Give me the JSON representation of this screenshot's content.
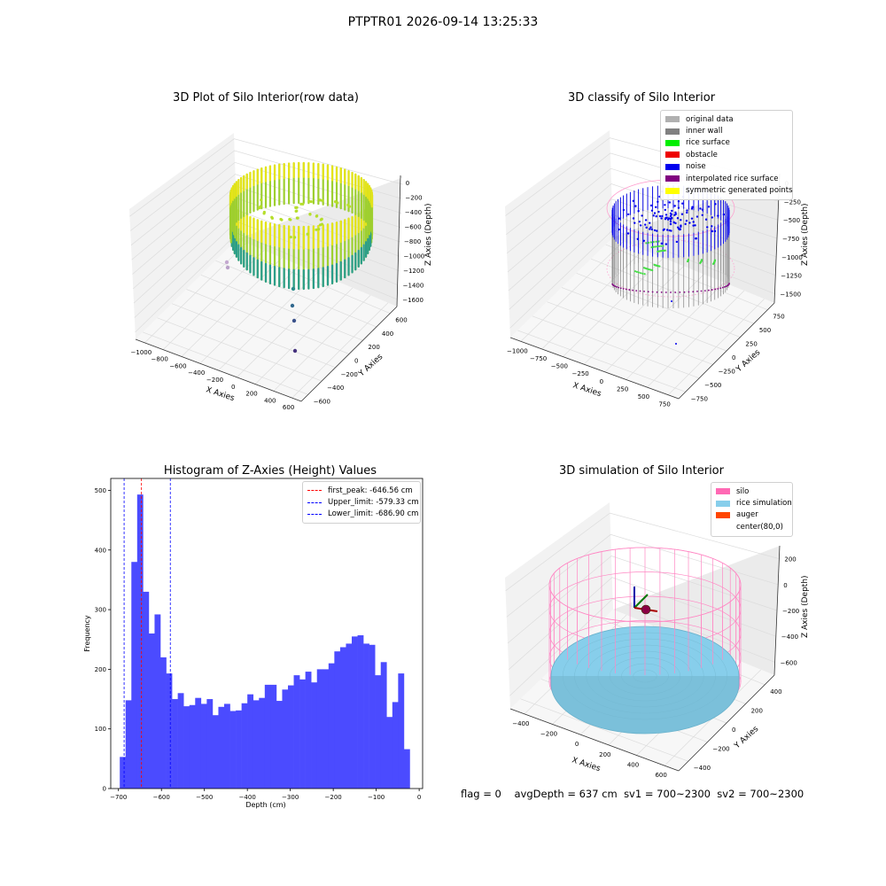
{
  "figure": {
    "suptitle": "PTPTR01 2026-09-14 13:25:33",
    "footer": {
      "flag": "flag = 0",
      "avg_depth": "avgDepth = 637 cm",
      "sv1": "sv1 = 700~2300",
      "sv2": "sv2 = 700~2300"
    }
  },
  "chart_data": [
    {
      "type": "scatter",
      "projection": "3d",
      "title": "3D Plot of Silo Interior(row data)",
      "xlabel": "X Axies",
      "ylabel": "Y Axies",
      "zlabel": "Z Axies (Depth)",
      "xticks": [
        "−1000",
        "−800",
        "−600",
        "−400",
        "−200",
        "0",
        "200",
        "400",
        "600"
      ],
      "yticks": [
        "−600",
        "−400",
        "−200",
        "0",
        "200",
        "400",
        "600"
      ],
      "zticks": [
        "0",
        "−200",
        "−400",
        "−600",
        "−800",
        "−1000",
        "−1200",
        "−1400",
        "−1600"
      ],
      "colormap": "viridis",
      "grid": true
    },
    {
      "type": "scatter",
      "projection": "3d",
      "title": "3D classify of Silo Interior",
      "xlabel": "X Axies",
      "ylabel": "Y Axies",
      "zlabel": "Z Axies (Depth)",
      "xticks": [
        "−1000",
        "−750",
        "−500",
        "−250",
        "0",
        "250",
        "500",
        "750"
      ],
      "yticks": [
        "−750",
        "−500",
        "−250",
        "0",
        "250",
        "500",
        "750"
      ],
      "zticks": [
        "0",
        "−250",
        "−500",
        "−750",
        "−1000",
        "−1250",
        "−1500"
      ],
      "legend": [
        {
          "label": "original data",
          "color": "#b0b0b0"
        },
        {
          "label": "inner wall",
          "color": "#808080"
        },
        {
          "label": "rice surface",
          "color": "#00ee00"
        },
        {
          "label": "obstacle",
          "color": "#ee0000"
        },
        {
          "label": "noise",
          "color": "#0000ee"
        },
        {
          "label": "interpolated rice surface",
          "color": "#800080"
        },
        {
          "label": "symmetric generated points",
          "color": "#ffff00"
        }
      ],
      "grid": true
    },
    {
      "type": "bar",
      "title": "Histogram of Z-Axies (Height) Values",
      "xlabel": "Depth (cm)",
      "ylabel": "Frequency",
      "xlim": [
        -718,
        8
      ],
      "ylim": [
        0,
        520
      ],
      "xticks": [
        "−700",
        "−600",
        "−500",
        "−400",
        "−300",
        "−200",
        "−100",
        "0"
      ],
      "yticks": [
        "0",
        "100",
        "200",
        "300",
        "400",
        "500"
      ],
      "bin_start": -697,
      "bin_width": 13.5,
      "values": [
        53,
        148,
        380,
        493,
        330,
        260,
        292,
        220,
        193,
        150,
        160,
        138,
        140,
        152,
        142,
        150,
        123,
        137,
        142,
        130,
        131,
        143,
        158,
        148,
        152,
        174,
        174,
        147,
        166,
        173,
        190,
        183,
        196,
        178,
        200,
        200,
        210,
        230,
        237,
        243,
        255,
        257,
        243,
        241,
        190,
        212,
        120,
        145,
        193,
        66
      ],
      "bar_color": "#4b4bff",
      "lines": [
        {
          "label": "first_peak: -646.56 cm",
          "x": -646.56,
          "color": "#ff0000",
          "style": "dashed"
        },
        {
          "label": "Upper_limit: -579.33 cm",
          "x": -579.33,
          "color": "#0000ff",
          "style": "dashed"
        },
        {
          "label": "Lower_limit: -686.90 cm",
          "x": -686.9,
          "color": "#0000ff",
          "style": "dashed"
        }
      ],
      "legend_position": "top-right"
    },
    {
      "type": "surface",
      "projection": "3d",
      "title": "3D simulation of Silo Interior",
      "xlabel": "X Axies",
      "ylabel": "Y Axies",
      "zlabel": "Z Axies (Depth)",
      "xticks": [
        "−400",
        "−200",
        "0",
        "200",
        "400",
        "600"
      ],
      "yticks": [
        "−400",
        "−200",
        "0",
        "200",
        "400"
      ],
      "zticks": [
        "200",
        "0",
        "−200",
        "−400",
        "−600"
      ],
      "legend": [
        {
          "label": "silo",
          "color": "#ff69b4"
        },
        {
          "label": "rice simulation",
          "color": "#87ceeb"
        },
        {
          "label": "auger",
          "color": "#ff4500"
        },
        {
          "label": "center(80,0)",
          "color": ""
        }
      ],
      "grid": true
    }
  ]
}
